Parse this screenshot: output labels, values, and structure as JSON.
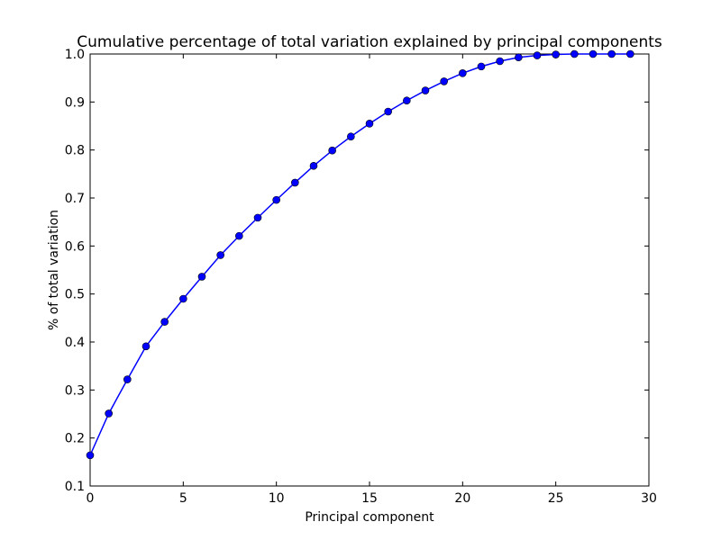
{
  "chart_data": {
    "type": "line",
    "title": "Cumulative percentage of total variation explained by principal components",
    "xlabel": "Principal component",
    "ylabel": "% of total variation",
    "xlim": [
      0,
      30
    ],
    "ylim": [
      0.1,
      1.0
    ],
    "xticks": [
      0,
      5,
      10,
      15,
      20,
      25,
      30
    ],
    "xtick_labels": [
      "0",
      "5",
      "10",
      "15",
      "20",
      "25",
      "30"
    ],
    "yticks": [
      0.1,
      0.2,
      0.3,
      0.4,
      0.5,
      0.6,
      0.7,
      0.8,
      0.9,
      1.0
    ],
    "ytick_labels": [
      "0.1",
      "0.2",
      "0.3",
      "0.4",
      "0.5",
      "0.6",
      "0.7",
      "0.8",
      "0.9",
      "1.0"
    ],
    "grid": false,
    "legend": "none",
    "colors": {
      "series": "#0000ff",
      "marker_edge": "#000000"
    },
    "series": [
      {
        "marker": "circle",
        "x": [
          0,
          1,
          2,
          3,
          4,
          5,
          6,
          7,
          8,
          9,
          10,
          11,
          12,
          13,
          14,
          15,
          16,
          17,
          18,
          19,
          20,
          21,
          22,
          23,
          24,
          25,
          26,
          27,
          28,
          29
        ],
        "values": [
          0.164,
          0.251,
          0.322,
          0.391,
          0.442,
          0.49,
          0.536,
          0.581,
          0.621,
          0.659,
          0.696,
          0.732,
          0.767,
          0.799,
          0.828,
          0.855,
          0.88,
          0.903,
          0.924,
          0.943,
          0.96,
          0.974,
          0.985,
          0.993,
          0.997,
          0.999,
          1.0,
          1.0,
          1.0,
          1.0
        ]
      }
    ]
  }
}
